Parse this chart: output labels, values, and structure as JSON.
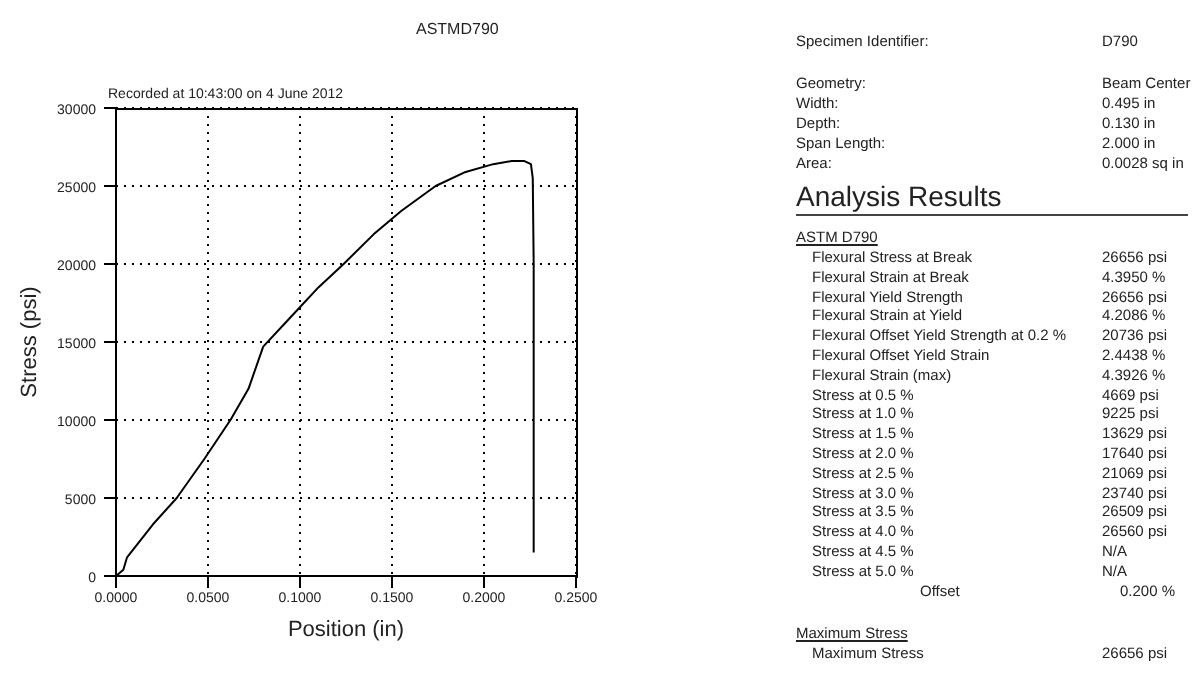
{
  "chart_data": [
    {
      "type": "line",
      "title": "ASTMD790",
      "xlabel": "Position (in)",
      "ylabel": "Stress (psi)",
      "annotations": [
        "Recorded at 10:43:00 on 4 June 2012"
      ],
      "x": [
        0,
        0.004,
        0.006,
        0.02,
        0.033,
        0.048,
        0.0622,
        0.072,
        0.08,
        0.095,
        0.11,
        0.1237,
        0.14,
        0.155,
        0.1737,
        0.19,
        0.205,
        0.215,
        0.222,
        0.2255,
        0.2265,
        0.227,
        0.227
      ],
      "series": [
        {
          "color": "#000000",
          "values": [
            0,
            400,
            1200,
            3300,
            5000,
            7500,
            10000,
            12000,
            14700,
            16600,
            18500,
            20000,
            21900,
            23400,
            25000,
            25900,
            26400,
            26600,
            26600,
            26400,
            25500,
            20000,
            1500
          ]
        }
      ],
      "xlim": [
        0,
        0.25
      ],
      "xticks": [
        {
          "value": 0,
          "label": "0.0000"
        },
        {
          "value": 0.05,
          "label": "0.0500"
        },
        {
          "value": 0.1,
          "label": "0.1000"
        },
        {
          "value": 0.15,
          "label": "0.1500"
        },
        {
          "value": 0.2,
          "label": "0.2000"
        },
        {
          "value": 0.25,
          "label": "0.2500"
        }
      ],
      "ylim": [
        0,
        30000
      ],
      "yticks": [
        0,
        5000,
        10000,
        15000,
        20000,
        25000,
        30000
      ],
      "grid": true,
      "marker": "none",
      "line_style": "solid"
    },
    {
      "type": "other",
      "title": "Analysis Results",
      "annotations": [
        "Specimen Identifier:",
        "D790",
        "Geometry:",
        "Beam Center",
        "Width:",
        "0.495 in",
        "Depth:",
        "0.130 in",
        "Span Length:",
        "2.000 in",
        "Area:",
        "0.0028 sq in",
        "ASTM D790",
        "Flexural Stress at Break",
        "26656 psi",
        "Flexural Strain at Break",
        "4.3950 %",
        "Flexural Yield Strength",
        "26656 psi",
        "Flexural Strain at Yield",
        "4.2086 %",
        "Flexural Offset Yield Strength at 0.2 %",
        "20736 psi",
        "Flexural Offset Yield Strain",
        "2.4438 %",
        "Flexural Strain (max)",
        "4.3926 %",
        "Stress at 0.5 %",
        "4669 psi",
        "Stress at 1.0 %",
        "9225 psi",
        "Stress at 1.5 %",
        "13629 psi",
        "Stress at 2.0 %",
        "17640 psi",
        "Stress at 2.5 %",
        "21069 psi",
        "Stress at 3.0 %",
        "23740 psi",
        "Stress at 3.5 %",
        "26509 psi",
        "Stress at 4.0 %",
        "26560 psi",
        "Stress at 4.5 %",
        "N/A",
        "Stress at 5.0 %",
        "N/A",
        "Offset",
        "0.200 %",
        "Maximum Stress",
        "Maximum Stress",
        "26656 psi"
      ]
    }
  ]
}
